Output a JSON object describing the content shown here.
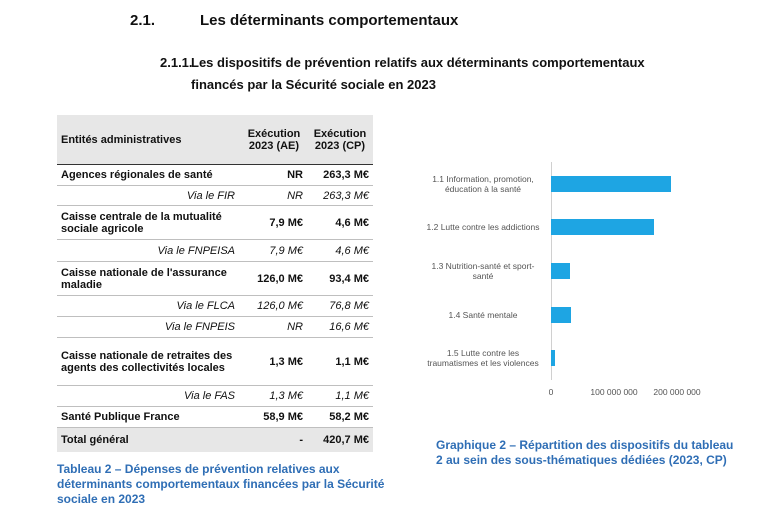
{
  "heading": {
    "number": "2.1.",
    "title": "Les déterminants comportementaux"
  },
  "subheading": {
    "number": "2.1.1.",
    "lines": [
      "Les dispositifs de prévention relatifs aux déterminants comportementaux",
      "financés par la Sécurité sociale en 2023"
    ]
  },
  "table": {
    "header": [
      "Entités administratives",
      "Exécution 2023 (AE)",
      "Exécution 2023 (CP)"
    ],
    "rows": [
      [
        "Agences régionales de santé",
        "NR",
        "263,3 M€"
      ],
      [
        "Via le FIR",
        "NR",
        "263,3 M€"
      ],
      [
        "Caisse centrale de la mutualité sociale agricole",
        "7,9 M€",
        "4,6 M€"
      ],
      [
        "Via le FNPEISA",
        "7,9 M€",
        "4,6 M€"
      ],
      [
        "Caisse nationale de l'assurance maladie",
        "126,0 M€",
        "93,4 M€"
      ],
      [
        "Via le FLCA",
        "126,0 M€",
        "76,8 M€"
      ],
      [
        "Via le FNPEIS",
        "NR",
        "16,6 M€"
      ],
      [
        "Caisse nationale de retraites des agents des collectivités locales",
        "1,3 M€",
        "1,1 M€"
      ],
      [
        "Via le FAS",
        "1,3 M€",
        "1,1 M€"
      ],
      [
        "Santé Publique France",
        "58,9 M€",
        "58,2 M€"
      ],
      [
        "Total général",
        "-",
        "420,7 M€"
      ]
    ],
    "caption": "Tableau 2 – Dépenses de prévention relatives aux déterminants comportementaux financées par la Sécurité sociale en 2023"
  },
  "chart_data": {
    "type": "bar",
    "orientation": "horizontal",
    "categories": [
      "1.1 Information, promotion, éducation à la santé",
      "1.2 Lutte contre les addictions",
      "1.3 Nutrition-santé et sport-santé",
      "1.4 Santé mentale",
      "1.5 Lutte contre les traumatismes et les violences"
    ],
    "values": [
      190000000,
      163000000,
      30000000,
      32000000,
      6000000
    ],
    "color": "#1ea5e3",
    "xlim": [
      0,
      220000000
    ],
    "xticks": [
      0,
      {
        "value": 100000000,
        "label": "100 000 000"
      },
      {
        "value": 200000000,
        "label": "200 000 000"
      }
    ],
    "caption": "Graphique 2 – Répartition des dispositifs du tableau 2 au sein des sous-thématiques dédiées (2023, CP)"
  }
}
